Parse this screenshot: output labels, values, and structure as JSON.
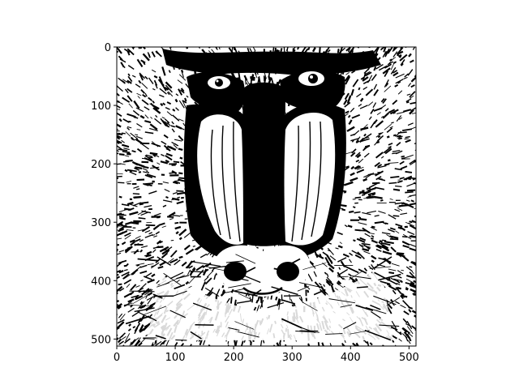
{
  "figure": {
    "image_label": "binary thresholded mandrill (baboon) face",
    "colors": {
      "foreground": "#000000",
      "background": "#ffffff"
    },
    "axes": {
      "x_ticks": [
        "0",
        "100",
        "200",
        "300",
        "400",
        "500"
      ],
      "y_ticks": [
        "0",
        "100",
        "200",
        "300",
        "400",
        "500"
      ],
      "x_range": [
        0,
        512
      ],
      "y_range": [
        0,
        512
      ],
      "y_inverted": true
    }
  }
}
